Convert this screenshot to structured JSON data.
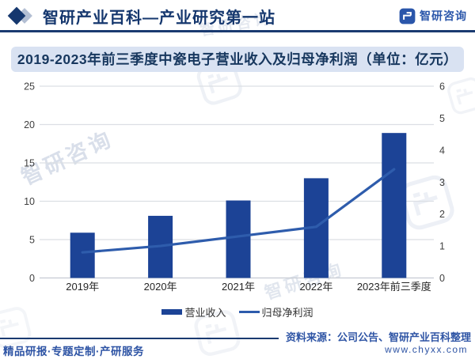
{
  "header": {
    "title": "智研产业百科—产业研究第一站",
    "brand_name": "智研咨询"
  },
  "chart_title": "2019-2023年前三季度中瓷电子营业收入及归母净利润（单位：亿元）",
  "chart_data": {
    "type": "bar",
    "title": "2019-2023年前三季度中瓷电子营业收入及归母净利润（单位：亿元）",
    "unit": "亿元",
    "categories": [
      "2019年",
      "2020年",
      "2021年",
      "2022年",
      "2023年前三季度"
    ],
    "series": [
      {
        "name": "营业收入",
        "type": "bar",
        "axis": "left",
        "color": "#1c4396",
        "values": [
          5.9,
          8.1,
          10.1,
          13.0,
          18.9
        ]
      },
      {
        "name": "归母净利润",
        "type": "line",
        "axis": "right",
        "color": "#2e5cac",
        "values": [
          0.8,
          1.0,
          1.3,
          1.6,
          3.4
        ]
      }
    ],
    "left_axis": {
      "min": 0,
      "max": 25,
      "ticks": [
        0,
        5,
        10,
        15,
        20,
        25
      ]
    },
    "right_axis": {
      "min": 0,
      "max": 6,
      "ticks": [
        0,
        1,
        2,
        3,
        4,
        5,
        6
      ]
    },
    "grid": true,
    "legend_position": "bottom"
  },
  "footer": {
    "tagline": "精品研报·专题定制·产研服务",
    "source": "资料来源：公司公告、智研产业百科整理",
    "website": "www.chyxx.com"
  },
  "watermark_text": "智研咨询",
  "colors": {
    "bar": "#1c4396",
    "line": "#2e5cac",
    "title_bar_bg": "#d9e2f2",
    "title_text": "#17375e",
    "accent_navy": "#1a3a70",
    "footer_text": "#2f55a5"
  }
}
